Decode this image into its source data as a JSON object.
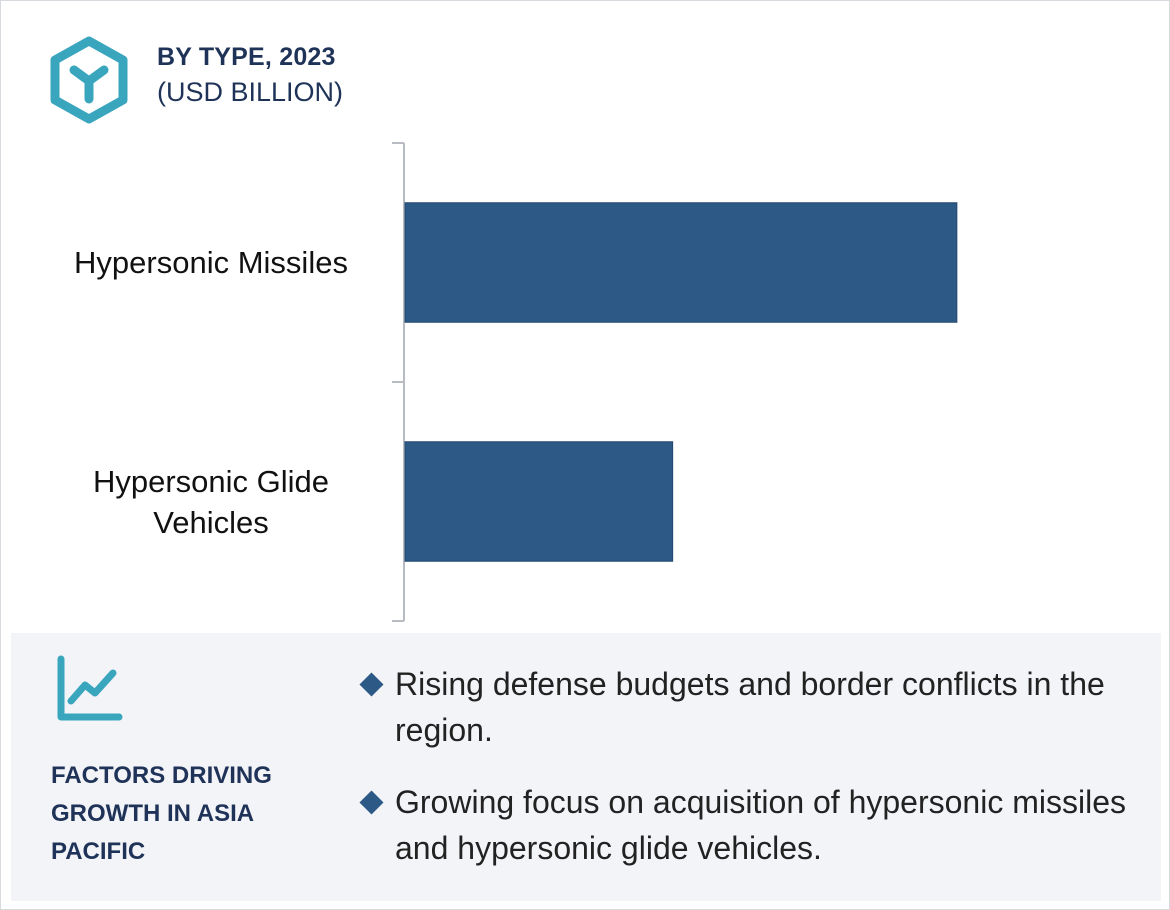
{
  "header": {
    "title": "BY TYPE, 2023",
    "subtitle": "(USD BILLION)",
    "icon": "segment-hexagon-icon",
    "accent_color": "#3aa6bd"
  },
  "chart_data": {
    "type": "bar",
    "orientation": "horizontal",
    "title": "BY TYPE, 2023",
    "subtitle": "(USD BILLION)",
    "categories": [
      "Hypersonic Missiles",
      "Hypersonic Glide Vehicles"
    ],
    "values": [
      2.0,
      0.97
    ],
    "xlim": [
      0,
      2.7
    ],
    "value_axis_shown": false,
    "grid": false,
    "legend": "none",
    "bar_color": "#2d5986"
  },
  "factors": {
    "icon": "trend-chart-icon",
    "title": "FACTORS DRIVING GROWTH IN ASIA PACIFIC",
    "bullets": [
      "Rising defense budgets and border conflicts in the region.",
      "Growing focus on acquisition of hypersonic missiles and hypersonic glide vehicles."
    ]
  }
}
